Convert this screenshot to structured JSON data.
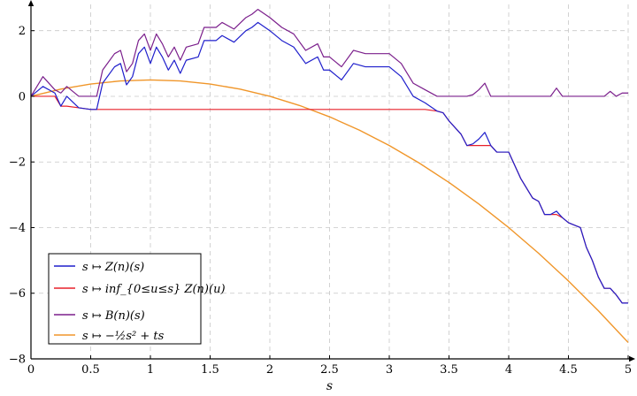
{
  "chart_data": {
    "type": "line",
    "title": "",
    "xlabel": "s",
    "ylabel": "",
    "xlim": [
      0,
      5
    ],
    "ylim": [
      -8,
      2.8
    ],
    "grid": true,
    "legend_position": "bottom-left",
    "x_ticks": [
      "0",
      "0.5",
      "1",
      "1.5",
      "2",
      "2.5",
      "3",
      "3.5",
      "4",
      "4.5",
      "5"
    ],
    "y_ticks": [
      "2",
      "0",
      "−2",
      "−4",
      "−6",
      "−8"
    ],
    "x_tick_values": [
      0,
      0.5,
      1,
      1.5,
      2,
      2.5,
      3,
      3.5,
      4,
      4.5,
      5
    ],
    "y_tick_values": [
      2,
      0,
      -2,
      -4,
      -6,
      -8
    ],
    "parabola_t": 1,
    "series": [
      {
        "name": "s ↦ Z(n)(s)",
        "color": "#1f1fcc",
        "x": [
          0,
          0.1,
          0.2,
          0.25,
          0.3,
          0.4,
          0.5,
          0.55,
          0.6,
          0.7,
          0.75,
          0.8,
          0.85,
          0.9,
          0.95,
          1.0,
          1.05,
          1.1,
          1.15,
          1.2,
          1.25,
          1.3,
          1.4,
          1.45,
          1.5,
          1.55,
          1.6,
          1.7,
          1.8,
          1.85,
          1.9,
          2.0,
          2.1,
          2.2,
          2.3,
          2.4,
          2.45,
          2.5,
          2.6,
          2.7,
          2.8,
          2.9,
          3.0,
          3.1,
          3.15,
          3.2,
          3.3,
          3.4,
          3.45,
          3.5,
          3.6,
          3.65,
          3.7,
          3.75,
          3.8,
          3.85,
          3.9,
          4.0,
          4.1,
          4.15,
          4.2,
          4.25,
          4.3,
          4.35,
          4.4,
          4.45,
          4.5,
          4.6,
          4.65,
          4.7,
          4.75,
          4.8,
          4.85,
          4.9,
          4.95,
          5.0
        ],
        "y": [
          0.0,
          0.3,
          0.1,
          -0.3,
          0.0,
          -0.35,
          -0.4,
          -0.4,
          0.4,
          0.9,
          1.0,
          0.35,
          0.6,
          1.3,
          1.5,
          1.0,
          1.5,
          1.2,
          0.8,
          1.1,
          0.7,
          1.1,
          1.2,
          1.7,
          1.7,
          1.7,
          1.85,
          1.65,
          2.0,
          2.1,
          2.25,
          2.0,
          1.7,
          1.5,
          1.0,
          1.2,
          0.8,
          0.8,
          0.5,
          1.0,
          0.9,
          0.9,
          0.9,
          0.6,
          0.3,
          0.0,
          -0.2,
          -0.45,
          -0.5,
          -0.75,
          -1.15,
          -1.5,
          -1.45,
          -1.3,
          -1.1,
          -1.5,
          -1.7,
          -1.7,
          -2.5,
          -2.8,
          -3.1,
          -3.2,
          -3.6,
          -3.6,
          -3.5,
          -3.7,
          -3.85,
          -4.0,
          -4.6,
          -5.0,
          -5.5,
          -5.85,
          -5.85,
          -6.05,
          -6.3,
          -6.3
        ]
      },
      {
        "name": "s ↦ inf_{0≤u≤s} Z(n)(u)",
        "color": "#e8202a",
        "x": [
          0,
          0.1,
          0.2,
          0.25,
          0.3,
          0.4,
          0.5,
          0.55,
          0.6,
          0.7,
          0.75,
          0.8,
          0.85,
          0.9,
          0.95,
          1.0,
          1.05,
          1.1,
          1.15,
          1.2,
          1.25,
          1.3,
          1.4,
          1.45,
          1.5,
          1.55,
          1.6,
          1.7,
          1.8,
          1.85,
          1.9,
          2.0,
          2.1,
          2.2,
          2.3,
          2.4,
          2.45,
          2.5,
          2.6,
          2.7,
          2.8,
          2.9,
          3.0,
          3.1,
          3.15,
          3.2,
          3.3,
          3.4,
          3.45,
          3.5,
          3.6,
          3.65,
          3.7,
          3.75,
          3.8,
          3.85,
          3.9,
          4.0,
          4.1,
          4.15,
          4.2,
          4.25,
          4.3,
          4.35,
          4.4,
          4.45,
          4.5,
          4.6,
          4.65,
          4.7,
          4.75,
          4.8,
          4.85,
          4.9,
          4.95,
          5.0
        ],
        "y": [
          0.0,
          0.0,
          0.0,
          -0.3,
          -0.3,
          -0.35,
          -0.4,
          -0.4,
          -0.4,
          -0.4,
          -0.4,
          -0.4,
          -0.4,
          -0.4,
          -0.4,
          -0.4,
          -0.4,
          -0.4,
          -0.4,
          -0.4,
          -0.4,
          -0.4,
          -0.4,
          -0.4,
          -0.4,
          -0.4,
          -0.4,
          -0.4,
          -0.4,
          -0.4,
          -0.4,
          -0.4,
          -0.4,
          -0.4,
          -0.4,
          -0.4,
          -0.4,
          -0.4,
          -0.4,
          -0.4,
          -0.4,
          -0.4,
          -0.4,
          -0.4,
          -0.4,
          -0.4,
          -0.4,
          -0.45,
          -0.5,
          -0.75,
          -1.15,
          -1.5,
          -1.5,
          -1.5,
          -1.5,
          -1.5,
          -1.7,
          -1.7,
          -2.5,
          -2.8,
          -3.1,
          -3.2,
          -3.6,
          -3.6,
          -3.6,
          -3.7,
          -3.85,
          -4.0,
          -4.6,
          -5.0,
          -5.5,
          -5.85,
          -5.85,
          -6.05,
          -6.3,
          -6.3
        ]
      },
      {
        "name": "s ↦ B(n)(s)",
        "color": "#7b1f8c",
        "x": [
          0,
          0.1,
          0.2,
          0.25,
          0.3,
          0.4,
          0.5,
          0.55,
          0.6,
          0.7,
          0.75,
          0.8,
          0.85,
          0.9,
          0.95,
          1.0,
          1.05,
          1.1,
          1.15,
          1.2,
          1.25,
          1.3,
          1.4,
          1.45,
          1.5,
          1.55,
          1.6,
          1.7,
          1.8,
          1.85,
          1.9,
          2.0,
          2.1,
          2.2,
          2.3,
          2.4,
          2.45,
          2.5,
          2.6,
          2.7,
          2.8,
          2.9,
          3.0,
          3.1,
          3.15,
          3.2,
          3.3,
          3.4,
          3.45,
          3.5,
          3.6,
          3.65,
          3.7,
          3.75,
          3.8,
          3.85,
          3.9,
          4.0,
          4.1,
          4.15,
          4.2,
          4.25,
          4.3,
          4.35,
          4.4,
          4.45,
          4.5,
          4.6,
          4.65,
          4.7,
          4.75,
          4.8,
          4.85,
          4.9,
          4.95,
          5.0
        ],
        "y": [
          0.0,
          0.6,
          0.2,
          0.1,
          0.3,
          0.0,
          0.0,
          0.0,
          0.8,
          1.3,
          1.4,
          0.75,
          1.0,
          1.7,
          1.9,
          1.4,
          1.9,
          1.6,
          1.2,
          1.5,
          1.1,
          1.5,
          1.6,
          2.1,
          2.1,
          2.1,
          2.25,
          2.05,
          2.4,
          2.5,
          2.65,
          2.4,
          2.1,
          1.9,
          1.4,
          1.6,
          1.2,
          1.2,
          0.9,
          1.4,
          1.3,
          1.3,
          1.3,
          1.0,
          0.7,
          0.4,
          0.2,
          0.0,
          0.0,
          0.0,
          0.0,
          0.0,
          0.05,
          0.2,
          0.4,
          0.0,
          0.0,
          0.0,
          0.0,
          0.0,
          0.0,
          0.0,
          0.0,
          0.0,
          0.25,
          0.0,
          0.0,
          0.0,
          0.0,
          0.0,
          0.0,
          0.0,
          0.15,
          0.0,
          0.1,
          0.1
        ]
      },
      {
        "name": "s ↦ −½s² + ts",
        "color": "#f0962a",
        "x": [
          0,
          0.25,
          0.5,
          0.75,
          1.0,
          1.25,
          1.5,
          1.75,
          2.0,
          2.25,
          2.5,
          2.75,
          3.0,
          3.25,
          3.5,
          3.75,
          4.0,
          4.25,
          4.5,
          4.75,
          5.0
        ],
        "y": [
          0.0,
          0.219,
          0.375,
          0.469,
          0.5,
          0.469,
          0.375,
          0.219,
          0.0,
          -0.281,
          -0.625,
          -1.031,
          -1.5,
          -2.031,
          -2.625,
          -3.281,
          -4.0,
          -4.781,
          -5.625,
          -6.531,
          -7.5
        ]
      }
    ]
  }
}
